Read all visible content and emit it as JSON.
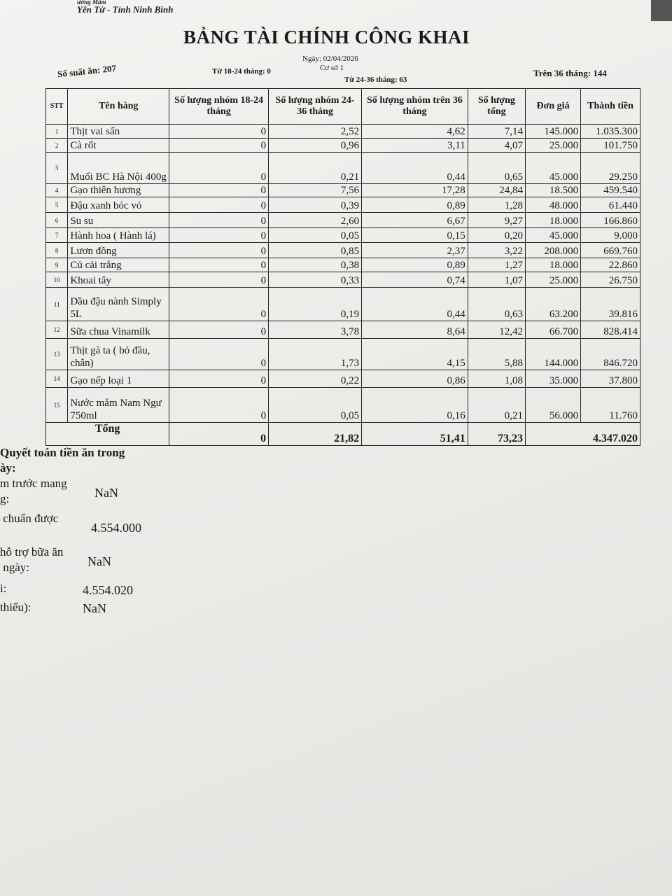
{
  "header": {
    "org_partial": "ường Mầm",
    "location": "Yên Từ - Tỉnh Ninh Bình",
    "title": "BẢNG TÀI CHÍNH CÔNG KHAI",
    "date": "Ngày: 02/04/2026",
    "branch": "Cơ sở 1",
    "meals": "Số suất ăn: 207",
    "group_18_24": "Từ 18-24 tháng: 0",
    "group_24_36": "Từ 24-36 tháng: 63",
    "group_over_36": "Trên 36 tháng: 144"
  },
  "table": {
    "columns": [
      "STT",
      "Tên hàng",
      "Số lượng nhóm 18-24 tháng",
      "Số lượng nhóm 24-36 tháng",
      "Số lượng nhóm trên 36 tháng",
      "Số lượng tổng",
      "Đơn giá",
      "Thành tiền"
    ],
    "rows": [
      [
        "1",
        "Thịt vai sấn",
        "0",
        "2,52",
        "4,62",
        "7,14",
        "145.000",
        "1.035.300"
      ],
      [
        "2",
        "Cà rốt",
        "0",
        "0,96",
        "3,11",
        "4,07",
        "25.000",
        "101.750"
      ],
      [
        "3",
        "Muối BC Hà Nội 400g",
        "0",
        "0,21",
        "0,44",
        "0,65",
        "45.000",
        "29.250"
      ],
      [
        "4",
        "Gạo thiên hương",
        "0",
        "7,56",
        "17,28",
        "24,84",
        "18.500",
        "459.540"
      ],
      [
        "5",
        "Đậu xanh bóc vỏ",
        "0",
        "0,39",
        "0,89",
        "1,28",
        "48.000",
        "61.440"
      ],
      [
        "6",
        "Su su",
        "0",
        "2,60",
        "6,67",
        "9,27",
        "18.000",
        "166.860"
      ],
      [
        "7",
        "Hành hoa ( Hành lá)",
        "0",
        "0,05",
        "0,15",
        "0,20",
        "45.000",
        "9.000"
      ],
      [
        "8",
        "Lươn đồng",
        "0",
        "0,85",
        "2,37",
        "3,22",
        "208.000",
        "669.760"
      ],
      [
        "9",
        "Củ cải trắng",
        "0",
        "0,38",
        "0,89",
        "1,27",
        "18.000",
        "22.860"
      ],
      [
        "10",
        "Khoai tây",
        "0",
        "0,33",
        "0,74",
        "1,07",
        "25.000",
        "26.750"
      ],
      [
        "11",
        "Dầu đậu nành Simply 5L",
        "0",
        "0,19",
        "0,44",
        "0,63",
        "63.200",
        "39.816"
      ],
      [
        "12",
        "Sữa chua Vinamilk",
        "0",
        "3,78",
        "8,64",
        "12,42",
        "66.700",
        "828.414"
      ],
      [
        "13",
        "Thịt gà ta ( bỏ đầu, chân)",
        "0",
        "1,73",
        "4,15",
        "5,88",
        "144.000",
        "846.720"
      ],
      [
        "14",
        "Gạo nếp loại 1",
        "0",
        "0,22",
        "0,86",
        "1,08",
        "35.000",
        "37.800"
      ],
      [
        "15",
        "Nước mắm Nam Ngư 750ml",
        "0",
        "0,05",
        "0,16",
        "0,21",
        "56.000",
        "11.760"
      ]
    ],
    "total": {
      "label": "Tổng",
      "g1": "0",
      "g2": "21,82",
      "g3": "51,41",
      "sum": "73,23",
      "amount": "4.347.020"
    }
  },
  "summary": {
    "heading": "Quyết toán tiền ăn trong\này:",
    "items": [
      {
        "label": "m trước mang\ng:",
        "value": "NaN"
      },
      {
        "label": " chuẩn được",
        "value": "4.554.000"
      },
      {
        "label": "hỗ trợ bữa ăn\n ngày:",
        "value": "NaN"
      },
      {
        "label": "i:",
        "value": "4.554.020"
      },
      {
        "label": "thiếu):",
        "value": "NaN"
      }
    ]
  }
}
